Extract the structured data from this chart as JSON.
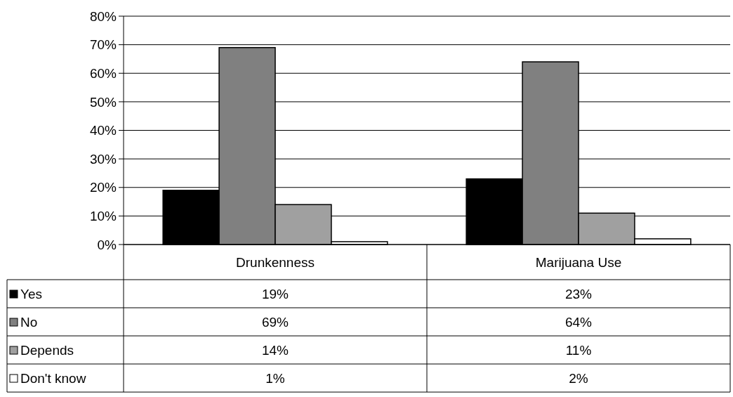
{
  "chart_data": {
    "type": "bar",
    "categories": [
      "Drunkenness",
      "Marijuana Use"
    ],
    "series": [
      {
        "name": "Yes",
        "color": "#000000",
        "values": [
          19,
          23
        ],
        "value_labels": [
          "19%",
          "23%"
        ]
      },
      {
        "name": "No",
        "color": "#808080",
        "values": [
          69,
          64
        ],
        "value_labels": [
          "69%",
          "64%"
        ]
      },
      {
        "name": "Depends",
        "color": "#a0a0a0",
        "values": [
          14,
          11
        ],
        "value_labels": [
          "14%",
          "11%"
        ]
      },
      {
        "name": "Don't know",
        "color": "#ffffff",
        "values": [
          1,
          2
        ],
        "value_labels": [
          "1%",
          "2%"
        ]
      }
    ],
    "ylim": [
      0,
      80
    ],
    "yticks": [
      {
        "value": 0,
        "label": "0%"
      },
      {
        "value": 10,
        "label": "10%"
      },
      {
        "value": 20,
        "label": "20%"
      },
      {
        "value": 30,
        "label": "30%"
      },
      {
        "value": 40,
        "label": "40%"
      },
      {
        "value": 50,
        "label": "50%"
      },
      {
        "value": 60,
        "label": "60%"
      },
      {
        "value": 70,
        "label": "70%"
      },
      {
        "value": 80,
        "label": "80%"
      }
    ],
    "grid": "y",
    "legend": "bottom"
  }
}
